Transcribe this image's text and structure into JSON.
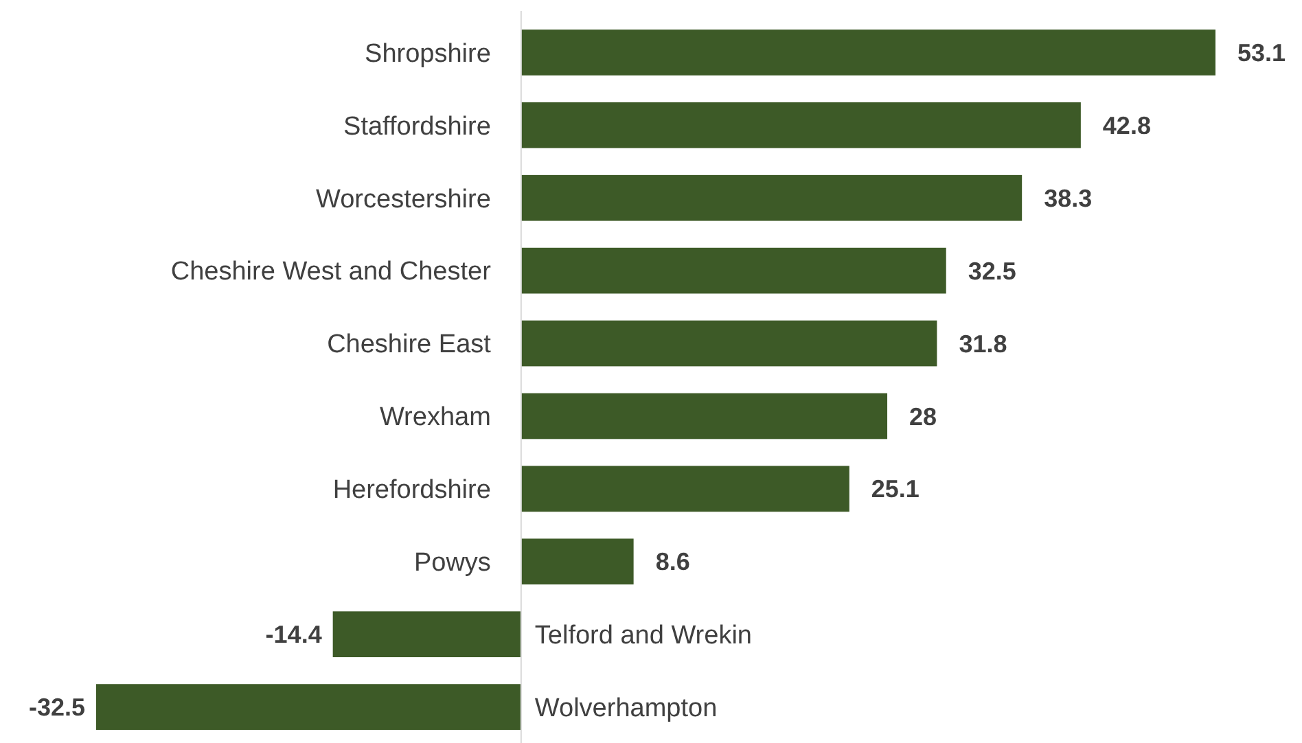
{
  "chart_data": {
    "type": "bar",
    "orientation": "horizontal",
    "categories": [
      "Shropshire",
      "Staffordshire",
      "Worcestershire",
      "Cheshire West and Chester",
      "Cheshire East",
      "Wrexham",
      "Herefordshire",
      "Powys",
      "Telford and Wrekin",
      "Wolverhampton"
    ],
    "values": [
      53.1,
      42.8,
      38.3,
      32.5,
      31.8,
      28,
      25.1,
      8.6,
      -14.4,
      -32.5
    ],
    "color": "#3d5a27",
    "data_labels": true
  }
}
